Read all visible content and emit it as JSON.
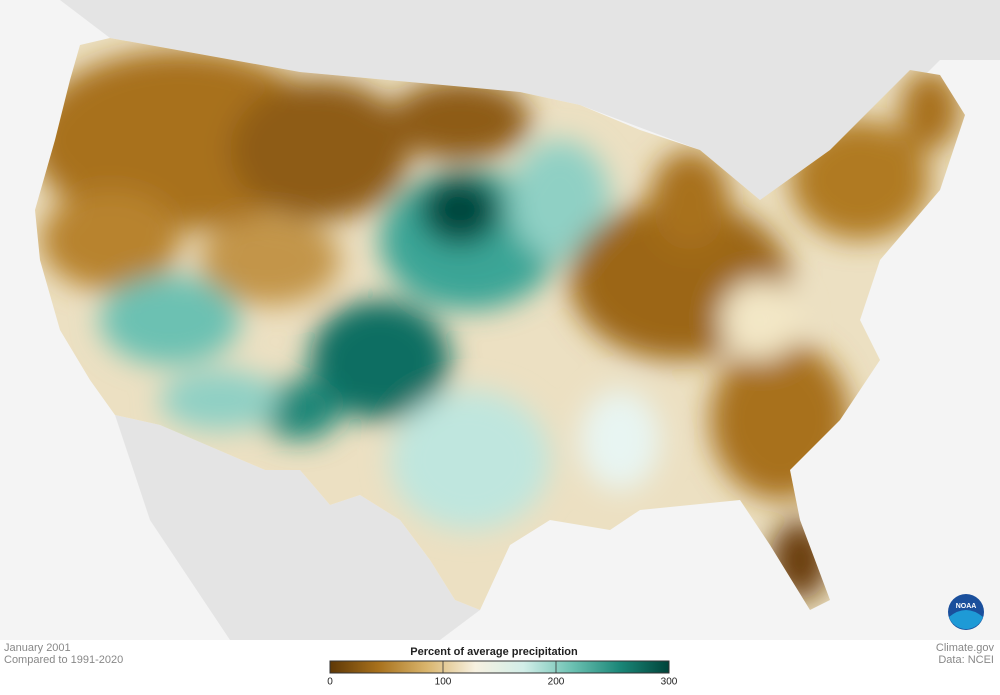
{
  "caption": {
    "date": "January 2001",
    "baseline": "Compared to 1991-2020"
  },
  "credit": {
    "site": "Climate.gov",
    "source": "Data: NCEI"
  },
  "logo": "NOAA",
  "legend": {
    "title": "Percent of average precipitation",
    "lim": [
      0,
      300
    ],
    "ticks": [
      0,
      100,
      200,
      300
    ],
    "colors": [
      "#5e3806",
      "#a8711c",
      "#d9b56d",
      "#f7f1e1",
      "#d2eee8",
      "#6cc1b2",
      "#1a8677",
      "#00443a"
    ]
  }
}
